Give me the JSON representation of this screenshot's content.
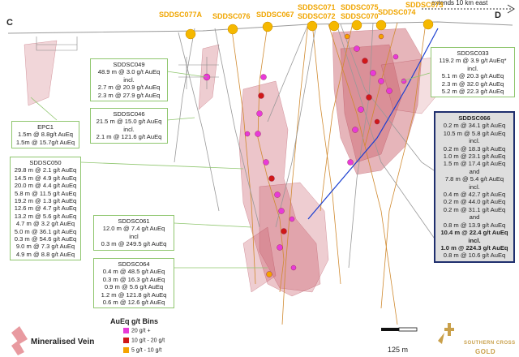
{
  "section_ends": {
    "left": "C",
    "right": "D",
    "east_note": "extends 10 km east"
  },
  "drillholes": [
    "SDDSC077A",
    "SDDSC076",
    "SDDSC067",
    "SDDSC071",
    "SDDSC072",
    "SDDSC075",
    "SDDSC070",
    "SDDSC074",
    "SDDSC073"
  ],
  "callouts": {
    "sddsc049": {
      "title": "SDDSC049",
      "lines": [
        "48.9 m @ 3.0 g/t AuEq",
        "incl.",
        "2.7 m @ 20.9 g/t AuEq",
        "2.3 m @ 27.9 g/t AuEq"
      ]
    },
    "sddsc046": {
      "title": "SDDSC046",
      "lines": [
        "21.5 m @ 15.0 g/t AuEq",
        "incl.",
        "2.1 m @ 121.6 g/t AuEq"
      ]
    },
    "epc1": {
      "title": "EPC1",
      "lines": [
        "1.5m @ 8.8g/t AuEq",
        "1.5m @ 15.7g/t AuEq"
      ]
    },
    "sddsc050": {
      "title": "SDDSC050",
      "lines": [
        "29.8 m @ 2.1 g/t AuEq",
        "14.5 m @ 4.9 g/t AuEq",
        "20.0 m @ 4.4 g/t AuEq",
        "5.8 m @ 11.5 g/t AuEq",
        "19.2 m @ 1.3 g/t AuEq",
        "12.6 m @ 4.7 g/t AuEq",
        "13.2 m @ 5.6 g/t AuEq",
        "4.7 m @ 3.2 g/t AuEq",
        "5.0 m @ 36.1 g/t AuEq",
        "0.3 m @ 54.6 g/t AuEq",
        "9.0 m @ 7.3 g/t AuEq",
        "4.9 m @ 8.8 g/t AuEq"
      ]
    },
    "sddsc061": {
      "title": "SDDSC061",
      "lines": [
        "12.0 m @ 7.4 g/t AuEq",
        "incl",
        "0.3 m @ 249.5 g/t AuEq"
      ]
    },
    "sddsc064": {
      "title": "SDDSC064",
      "lines": [
        "0.4 m @ 48.5 g/t AuEq",
        "0.3 m @ 16.3 g/t AuEq",
        "0.9 m @ 5.6 g/t AuEq",
        "1.2 m @ 121.8 g/t AuEq",
        "0.6 m @ 12.6 g/t AuEq"
      ]
    },
    "sddsc033": {
      "title": "SDDSC033",
      "lines": [
        "119.2 m @ 3.9 g/t AuEq*",
        "incl.",
        "5.1 m @ 20.3 g/t AuEq",
        "2.3 m @ 32.0 g/t AuEq",
        "5.2 m @ 22.3 g/t AuEq"
      ]
    },
    "sddsc066": {
      "title": "SDDSC066",
      "lines": [
        "0.2 m @ 34.1 g/t AuEq",
        "10.5 m @ 5.8 g/t AuEq",
        "incl.",
        "0.2 m @ 18.3 g/t AuEq",
        "1.0 m @ 23.1 g/t AuEq",
        "1.5 m @ 17.4 g/t AuEq",
        "and",
        "7.8 m @ 5.4 g/t AuEq",
        "incl.",
        "0.4 m @ 42.7 g/t AuEq",
        "0.2 m @ 44.0 g/t AuEq",
        "0.2 m @ 31.1 g/t AuEq",
        "and",
        "0.8 m @ 13.9 g/t AuEq"
      ],
      "bold_lines": [
        "10.4 m @ 22.4 g/t AuEq",
        "incl.",
        "1.0 m @ 224.3 g/t AuEq"
      ],
      "last_line": "0.8 m @ 10.6 g/t AuEq"
    }
  },
  "legend": {
    "title": "AuEq g/t Bins",
    "bins": [
      {
        "label": "20 g/t +",
        "color": "#e83ad8"
      },
      {
        "label": "10 g/t - 20 g/t",
        "color": "#d01818"
      },
      {
        "label": "5 g/t - 10 g/t",
        "color": "#f5a300"
      }
    ],
    "vein_label": "Mineralised Vein",
    "vein_color": "#e89aa0"
  },
  "scale_bar": {
    "label": "125 m"
  },
  "logo": {
    "text": "SOUTHERN CROSS",
    "subtext": "GOLD"
  },
  "colors": {
    "callout_border": "#8fc66e",
    "highlight_border": "#1f2f6e",
    "drillhole_gold": "#f0a500",
    "vein": "#c85a66"
  }
}
